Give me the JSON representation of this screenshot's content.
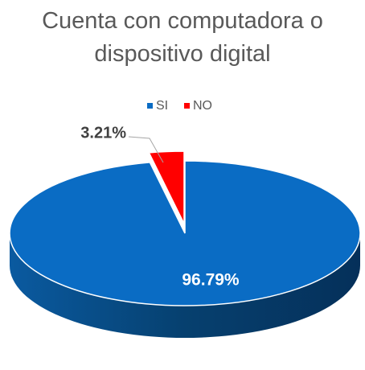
{
  "chart_data": {
    "type": "pie3d",
    "title": "Cuenta con computadora o dispositivo digital",
    "categories": [
      "SI",
      "NO"
    ],
    "values": [
      96.79,
      3.21
    ],
    "value_labels": [
      "96.79%",
      "3.21%"
    ],
    "colors": [
      "#0a6cc4",
      "#ff0000"
    ],
    "legend": "top"
  }
}
